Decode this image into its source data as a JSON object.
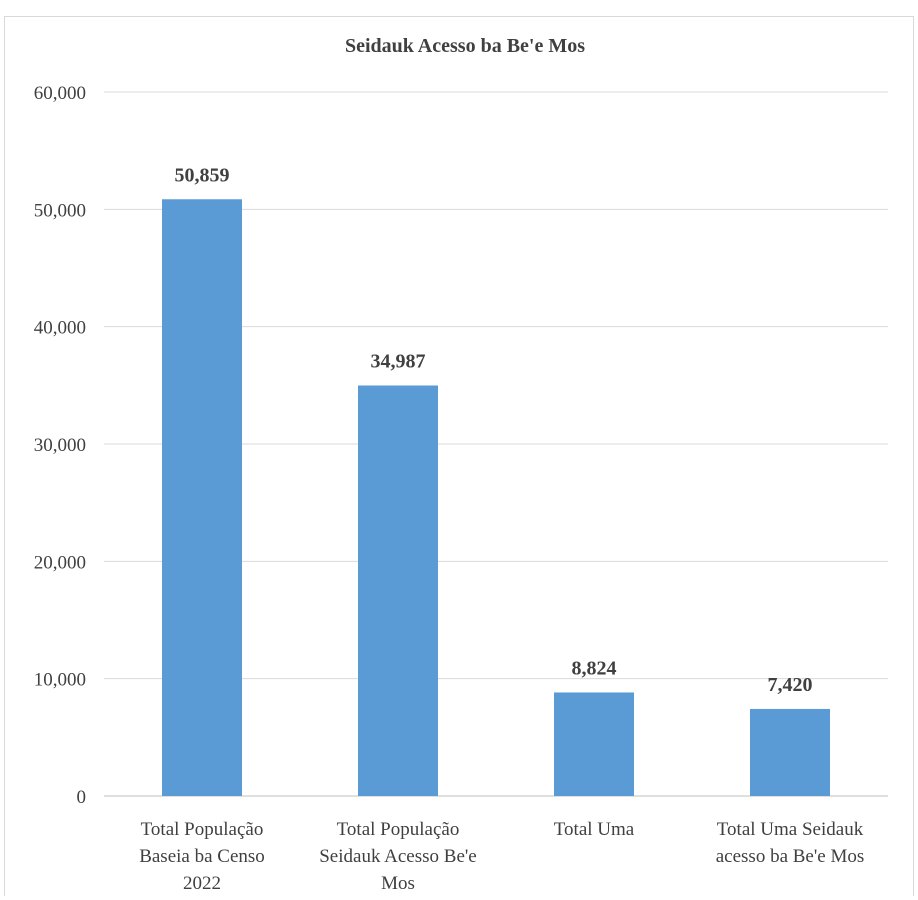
{
  "chart_data": {
    "type": "bar",
    "title": "Seidauk Acesso ba Be'e Mos",
    "xlabel": "",
    "ylabel": "",
    "ylim": [
      0,
      60000
    ],
    "yticks": [
      0,
      10000,
      20000,
      30000,
      40000,
      50000,
      60000
    ],
    "ytick_labels": [
      "0",
      "10,000",
      "20,000",
      "30,000",
      "40,000",
      "50,000",
      "60,000"
    ],
    "grid": true,
    "legend": "none",
    "bar_color": "#5b9bd5",
    "categories": [
      [
        "Total População",
        "Baseia ba Censo",
        "2022"
      ],
      [
        "Total População",
        "Seidauk Acesso Be'e",
        "Mos"
      ],
      [
        "Total Uma"
      ],
      [
        "Total Uma Seidauk",
        "acesso ba Be'e Mos"
      ]
    ],
    "values": [
      50859,
      34987,
      8824,
      7420
    ],
    "data_labels": [
      "50,859",
      "34,987",
      "8,824",
      "7,420"
    ]
  }
}
